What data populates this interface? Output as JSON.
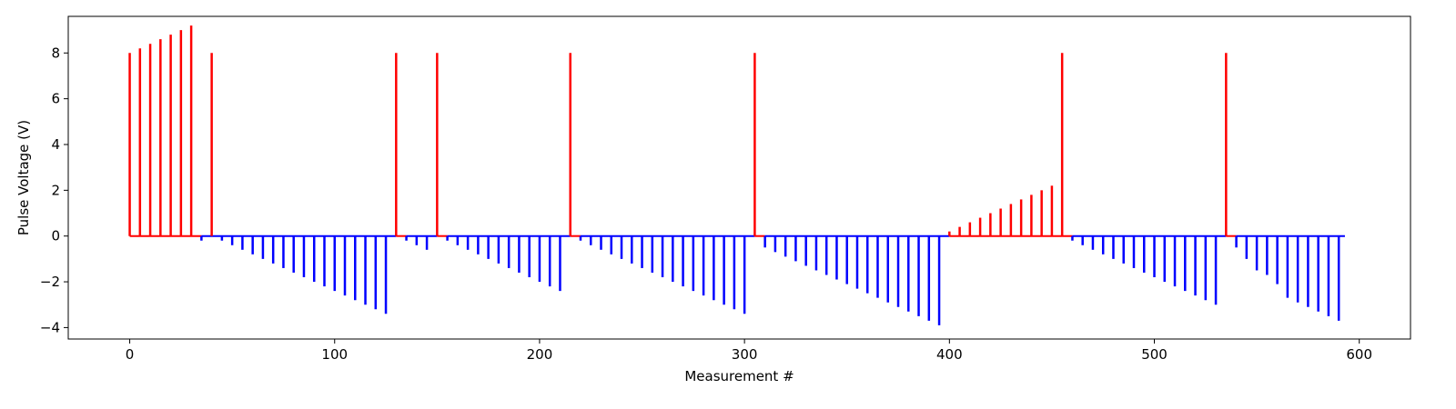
{
  "chart_data": {
    "type": "bar",
    "title": "",
    "xlabel": "Measurement #",
    "ylabel": "Pulse Voltage (V)",
    "xlim": [
      -30,
      625
    ],
    "ylim": [
      -4.5,
      9.6
    ],
    "xticks": [
      0,
      100,
      200,
      300,
      400,
      500,
      600
    ],
    "yticks": [
      -4,
      -2,
      0,
      2,
      4,
      6,
      8
    ],
    "grid": false,
    "legend": "none",
    "colors": {
      "positive": "#ff0000",
      "negative": "#0000ff"
    },
    "series": [
      {
        "color": "#ff0000",
        "x": [
          0,
          5,
          10,
          15,
          20,
          25,
          30,
          40,
          130,
          150,
          215,
          305,
          400,
          405,
          410,
          415,
          420,
          425,
          430,
          435,
          440,
          445,
          450,
          455,
          535
        ],
        "values": [
          8.0,
          8.2,
          8.4,
          8.6,
          8.8,
          9.0,
          9.2,
          8.0,
          8.0,
          8.0,
          8.0,
          8.0,
          0.2,
          0.4,
          0.6,
          0.8,
          1.0,
          1.2,
          1.4,
          1.6,
          1.8,
          2.0,
          2.2,
          8.0,
          8.0
        ]
      },
      {
        "color": "#0000ff",
        "x": [
          35,
          45,
          50,
          55,
          60,
          65,
          70,
          75,
          80,
          85,
          90,
          95,
          100,
          105,
          110,
          115,
          120,
          125,
          135,
          140,
          145,
          155,
          160,
          165,
          170,
          175,
          180,
          185,
          190,
          195,
          200,
          205,
          210,
          220,
          225,
          230,
          235,
          240,
          245,
          250,
          255,
          260,
          265,
          270,
          275,
          280,
          285,
          290,
          295,
          300,
          310,
          315,
          320,
          325,
          330,
          335,
          340,
          345,
          350,
          355,
          360,
          365,
          370,
          375,
          380,
          385,
          390,
          395,
          460,
          465,
          470,
          475,
          480,
          485,
          490,
          495,
          500,
          505,
          510,
          515,
          520,
          525,
          530,
          540,
          545,
          550,
          555,
          560,
          565,
          570,
          575,
          580,
          585,
          590
        ],
        "values": [
          -0.2,
          -0.2,
          -0.4,
          -0.6,
          -0.8,
          -1.0,
          -1.2,
          -1.4,
          -1.6,
          -1.8,
          -2.0,
          -2.2,
          -2.4,
          -2.6,
          -2.8,
          -3.0,
          -3.2,
          -3.4,
          -0.2,
          -0.4,
          -0.6,
          -0.2,
          -0.4,
          -0.6,
          -0.8,
          -1.0,
          -1.2,
          -1.4,
          -1.6,
          -1.8,
          -2.0,
          -2.2,
          -2.4,
          -0.2,
          -0.4,
          -0.6,
          -0.8,
          -1.0,
          -1.2,
          -1.4,
          -1.6,
          -1.8,
          -2.0,
          -2.2,
          -2.4,
          -2.6,
          -2.8,
          -3.0,
          -3.2,
          -3.4,
          -0.5,
          -0.7,
          -0.9,
          -1.1,
          -1.3,
          -1.5,
          -1.7,
          -1.9,
          -2.1,
          -2.3,
          -2.5,
          -2.7,
          -2.9,
          -3.1,
          -3.3,
          -3.5,
          -3.7,
          -3.9,
          -0.2,
          -0.4,
          -0.6,
          -0.8,
          -1.0,
          -1.2,
          -1.4,
          -1.6,
          -1.8,
          -2.0,
          -2.2,
          -2.4,
          -2.6,
          -2.8,
          -3.0,
          -0.5,
          -1.0,
          -1.5,
          -1.7,
          -2.1,
          -2.7,
          -2.9,
          -3.1,
          -3.3,
          -3.5,
          -3.7
        ]
      }
    ],
    "baseline_segments": [
      {
        "color": "#ff0000",
        "from": 0,
        "to": 35
      },
      {
        "color": "#0000ff",
        "from": 35,
        "to": 130
      },
      {
        "color": "#ff0000",
        "from": 130,
        "to": 135
      },
      {
        "color": "#0000ff",
        "from": 135,
        "to": 150
      },
      {
        "color": "#ff0000",
        "from": 150,
        "to": 155
      },
      {
        "color": "#0000ff",
        "from": 155,
        "to": 215
      },
      {
        "color": "#ff0000",
        "from": 215,
        "to": 220
      },
      {
        "color": "#0000ff",
        "from": 220,
        "to": 305
      },
      {
        "color": "#ff0000",
        "from": 305,
        "to": 310
      },
      {
        "color": "#0000ff",
        "from": 310,
        "to": 400
      },
      {
        "color": "#ff0000",
        "from": 400,
        "to": 460
      },
      {
        "color": "#0000ff",
        "from": 460,
        "to": 535
      },
      {
        "color": "#ff0000",
        "from": 535,
        "to": 540
      },
      {
        "color": "#0000ff",
        "from": 540,
        "to": 593
      }
    ]
  }
}
